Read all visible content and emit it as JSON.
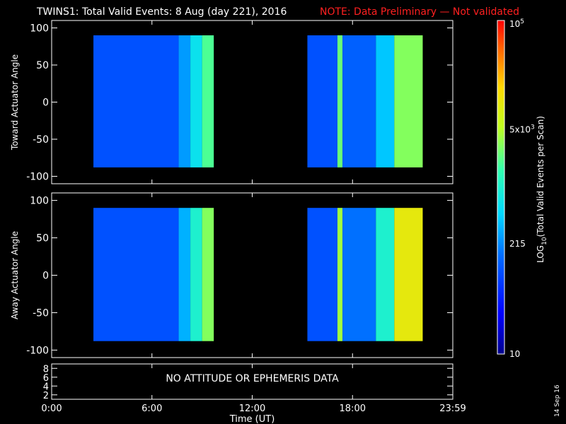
{
  "header": {
    "title": "TWINS1: Total Valid Events:  8 Aug (day 221), 2016",
    "note": "NOTE: Data Preliminary — Not validated",
    "note_color": "#ff2020"
  },
  "side_date": "14 Sep 16",
  "chart_data": [
    {
      "type": "heatmap",
      "panel": "top",
      "ylabel": "Toward Actuator Angle",
      "ylim": [
        -110,
        110
      ],
      "yticks": [
        -100,
        -50,
        0,
        50,
        100
      ],
      "xlim_hours": [
        0,
        24
      ],
      "data_blocks": [
        {
          "x_hours": [
            2.5,
            9.7
          ],
          "y": [
            -88,
            90
          ],
          "bands": [
            {
              "x_hours": [
                2.5,
                7.6
              ],
              "log10_events": 2.0
            },
            {
              "x_hours": [
                7.6,
                8.3
              ],
              "log10_events": 2.4
            },
            {
              "x_hours": [
                8.3,
                9.0
              ],
              "log10_events": 2.8
            },
            {
              "x_hours": [
                9.0,
                9.7
              ],
              "log10_events": 3.3
            }
          ]
        },
        {
          "x_hours": [
            15.3,
            22.2
          ],
          "y": [
            -88,
            90
          ],
          "bands": [
            {
              "x_hours": [
                15.3,
                17.1
              ],
              "log10_events": 2.0
            },
            {
              "x_hours": [
                17.1,
                17.4
              ],
              "log10_events": 3.4
            },
            {
              "x_hours": [
                17.4,
                19.4
              ],
              "log10_events": 2.1
            },
            {
              "x_hours": [
                19.4,
                20.5
              ],
              "log10_events": 2.6
            },
            {
              "x_hours": [
                20.5,
                22.2
              ],
              "log10_events": 3.5
            }
          ]
        }
      ]
    },
    {
      "type": "heatmap",
      "panel": "middle",
      "ylabel": "Away Actuator Angle",
      "ylim": [
        -110,
        110
      ],
      "yticks": [
        -100,
        -50,
        0,
        50,
        100
      ],
      "xlim_hours": [
        0,
        24
      ],
      "data_blocks": [
        {
          "x_hours": [
            2.5,
            9.7
          ],
          "y": [
            -88,
            90
          ],
          "bands": [
            {
              "x_hours": [
                2.5,
                7.6
              ],
              "log10_events": 2.0
            },
            {
              "x_hours": [
                7.6,
                8.3
              ],
              "log10_events": 2.5
            },
            {
              "x_hours": [
                8.3,
                9.0
              ],
              "log10_events": 3.0
            },
            {
              "x_hours": [
                9.0,
                9.7
              ],
              "log10_events": 3.5
            }
          ]
        },
        {
          "x_hours": [
            15.3,
            22.2
          ],
          "y": [
            -88,
            90
          ],
          "bands": [
            {
              "x_hours": [
                15.3,
                17.1
              ],
              "log10_events": 2.0
            },
            {
              "x_hours": [
                17.1,
                17.4
              ],
              "log10_events": 3.6
            },
            {
              "x_hours": [
                17.4,
                19.4
              ],
              "log10_events": 2.2
            },
            {
              "x_hours": [
                19.4,
                20.5
              ],
              "log10_events": 3.0
            },
            {
              "x_hours": [
                20.5,
                22.2
              ],
              "log10_events": 4.0
            }
          ]
        }
      ]
    },
    {
      "type": "line",
      "panel": "bottom",
      "ylim": [
        1,
        9
      ],
      "yticks": [
        2,
        4,
        6,
        8
      ],
      "message": "NO ATTITUDE OR EPHEMERIS DATA"
    }
  ],
  "x_axis": {
    "label": "Time (UT)",
    "tick_labels": [
      "0:00",
      "6:00",
      "12:00",
      "18:00",
      "23:59"
    ],
    "tick_hours": [
      0,
      6,
      12,
      18,
      24
    ]
  },
  "colorbar": {
    "label": "LOG10(Total Valid Events per Scan)",
    "label_main": "LOG",
    "label_sub": "10",
    "label_rest": "(Total Valid Events per Scan)",
    "range_log10": [
      1,
      5
    ],
    "tick_labels": [
      {
        "base": "10",
        "sup": "5",
        "log10": 5
      },
      {
        "base": "5x10",
        "sup": "3",
        "log10": 3.7
      },
      {
        "base": "215",
        "sup": "",
        "log10": 2.33
      },
      {
        "base": "10",
        "sup": "",
        "log10": 1
      }
    ]
  }
}
